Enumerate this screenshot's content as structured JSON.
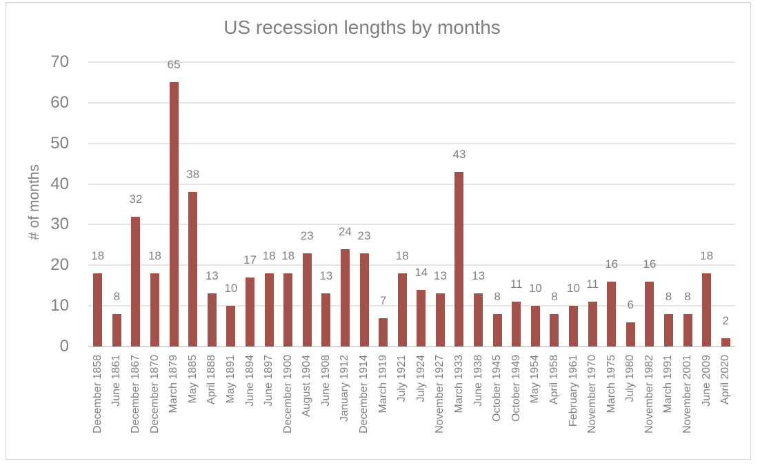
{
  "chart_data": {
    "type": "bar",
    "title": "US recession lengths by months",
    "xlabel": "",
    "ylabel": "# of months",
    "categories": [
      "December 1858",
      "June 1861",
      "December 1867",
      "December 1870",
      "March 1879",
      "May 1885",
      "April 1888",
      "May 1891",
      "June 1894",
      "June 1897",
      "December 1900",
      "August 1904",
      "June 1908",
      "January 1912",
      "December 1914",
      "March 1919",
      "July 1921",
      "July 1924",
      "November 1927",
      "March 1933",
      "June 1938",
      "October 1945",
      "October 1949",
      "May 1954",
      "April 1958",
      "February 1961",
      "November 1970",
      "March 1975",
      "July 1980",
      "November 1982",
      "March 1991",
      "November 2001",
      "June 2009",
      "April 2020"
    ],
    "values": [
      18,
      8,
      32,
      18,
      65,
      38,
      13,
      10,
      17,
      18,
      18,
      23,
      13,
      24,
      23,
      7,
      18,
      14,
      13,
      43,
      13,
      8,
      11,
      10,
      8,
      10,
      11,
      16,
      6,
      16,
      8,
      8,
      18,
      2
    ],
    "ylim": [
      0,
      70
    ],
    "yticks": [
      0,
      10,
      20,
      30,
      40,
      50,
      60,
      70
    ],
    "grid": true,
    "legend": false,
    "data_labels": true,
    "bar_color": "#a3514b",
    "text_color": "#7f7f7f",
    "gridline_color": "#e4e4e4",
    "axis_line_color": "#d6d6d6"
  }
}
